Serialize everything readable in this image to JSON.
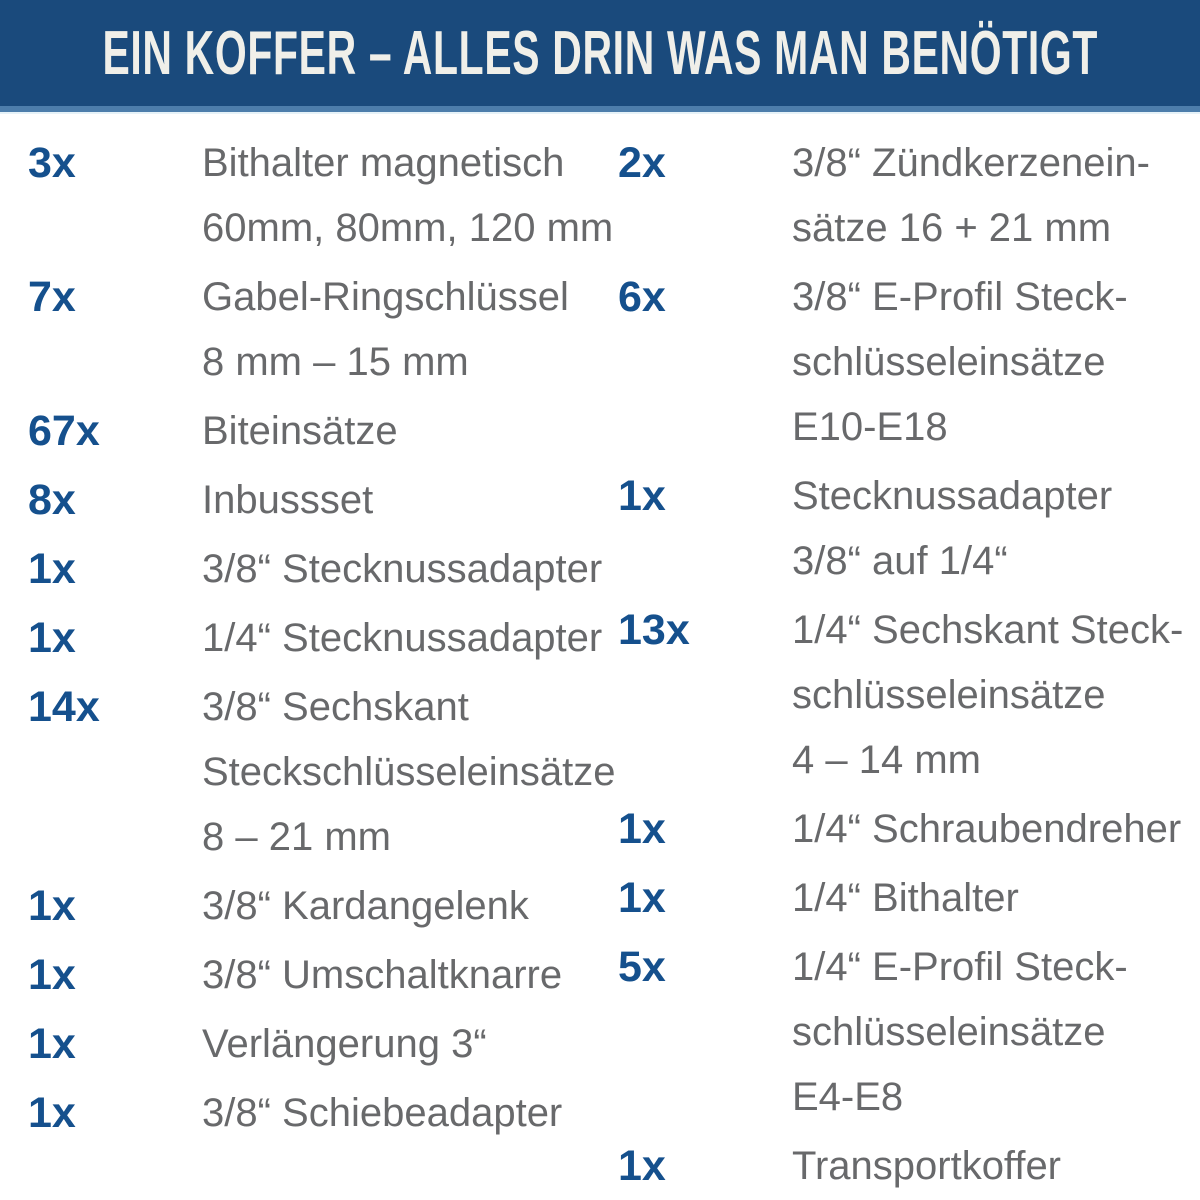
{
  "header": {
    "title": "EIN KOFFER – ALLES DRIN WAS MAN BENÖTIGT"
  },
  "colors": {
    "header_background": "#1a4a7c",
    "header_accent_line": "#4d7dab",
    "header_pale_line": "#e6f2f8",
    "header_text": "#f0efe9",
    "quantity_text": "#15508d",
    "description_text": "#68696b",
    "page_background": "#ffffff"
  },
  "columns": [
    {
      "items": [
        {
          "qty": "3x",
          "lines": [
            "Bithalter magnetisch",
            "60mm, 80mm, 120 mm"
          ]
        },
        {
          "qty": "7x",
          "lines": [
            "Gabel-Ringschlüssel",
            "8 mm – 15 mm"
          ]
        },
        {
          "qty": "67x",
          "lines": [
            "Biteinsätze"
          ]
        },
        {
          "qty": "8x",
          "lines": [
            "Inbussset"
          ]
        },
        {
          "qty": "1x",
          "lines": [
            "3/8“ Stecknussadapter"
          ]
        },
        {
          "qty": "1x",
          "lines": [
            "1/4“ Stecknussadapter"
          ]
        },
        {
          "qty": "14x",
          "lines": [
            "3/8“ Sechskant",
            "Steckschlüsseleinsätze",
            "8 – 21 mm"
          ]
        },
        {
          "qty": "1x",
          "lines": [
            "3/8“ Kardangelenk"
          ]
        },
        {
          "qty": "1x",
          "lines": [
            "3/8“ Umschaltknarre"
          ]
        },
        {
          "qty": "1x",
          "lines": [
            "Verlängerung 3“"
          ]
        },
        {
          "qty": "1x",
          "lines": [
            "3/8“ Schiebeadapter"
          ]
        }
      ]
    },
    {
      "items": [
        {
          "qty": "2x",
          "lines": [
            "3/8“ Zündkerzenein-",
            "sätze 16 + 21 mm"
          ]
        },
        {
          "qty": "6x",
          "lines": [
            "3/8“ E-Profil Steck-",
            "schlüsseleinsätze",
            "E10-E18"
          ]
        },
        {
          "qty": "1x",
          "lines": [
            "Stecknussadapter",
            "3/8“ auf 1/4“"
          ]
        },
        {
          "qty": "13x",
          "lines": [
            "1/4“ Sechskant Steck-",
            "schlüsseleinsätze",
            "4 – 14 mm"
          ]
        },
        {
          "qty": "1x",
          "lines": [
            "1/4“ Schraubendreher"
          ]
        },
        {
          "qty": "1x",
          "lines": [
            "1/4“ Bithalter"
          ]
        },
        {
          "qty": "5x",
          "lines": [
            "1/4“ E-Profil Steck-",
            "schlüsseleinsätze",
            "E4-E8"
          ]
        },
        {
          "qty": "1x",
          "lines": [
            "Transportkoffer"
          ]
        }
      ]
    }
  ]
}
